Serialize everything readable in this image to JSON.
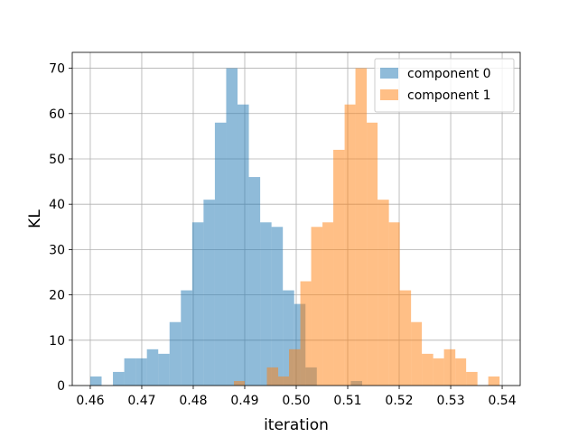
{
  "chart_data": {
    "type": "histogram",
    "title": "",
    "xlabel": "iteration",
    "ylabel": "KL",
    "xlim": [
      0.4565,
      0.5435
    ],
    "ylim": [
      0,
      73.5
    ],
    "xticks": [
      0.46,
      0.47,
      0.48,
      0.49,
      0.5,
      0.51,
      0.52,
      0.53,
      0.54
    ],
    "xtick_labels": [
      "0.46",
      "0.47",
      "0.48",
      "0.49",
      "0.50",
      "0.51",
      "0.52",
      "0.53",
      "0.54"
    ],
    "yticks": [
      0,
      10,
      20,
      30,
      40,
      50,
      60,
      70
    ],
    "ytick_labels": [
      "0",
      "10",
      "20",
      "30",
      "40",
      "50",
      "60",
      "70"
    ],
    "grid": true,
    "legend_position": "top-right",
    "series": [
      {
        "name": "component 0",
        "color": "#1f77b4",
        "alpha": 0.5,
        "bins": [
          {
            "x0": 0.46,
            "x1": 0.4622,
            "count": 2
          },
          {
            "x0": 0.4622,
            "x1": 0.4644,
            "count": 0
          },
          {
            "x0": 0.4644,
            "x1": 0.4666,
            "count": 3
          },
          {
            "x0": 0.4666,
            "x1": 0.4688,
            "count": 6
          },
          {
            "x0": 0.4688,
            "x1": 0.471,
            "count": 6
          },
          {
            "x0": 0.471,
            "x1": 0.4732,
            "count": 8
          },
          {
            "x0": 0.4732,
            "x1": 0.4754,
            "count": 7
          },
          {
            "x0": 0.4754,
            "x1": 0.4776,
            "count": 14
          },
          {
            "x0": 0.4776,
            "x1": 0.4798,
            "count": 21
          },
          {
            "x0": 0.4798,
            "x1": 0.482,
            "count": 36
          },
          {
            "x0": 0.482,
            "x1": 0.4842,
            "count": 41
          },
          {
            "x0": 0.4842,
            "x1": 0.4864,
            "count": 58
          },
          {
            "x0": 0.4864,
            "x1": 0.4886,
            "count": 70
          },
          {
            "x0": 0.4886,
            "x1": 0.4908,
            "count": 62
          },
          {
            "x0": 0.4908,
            "x1": 0.493,
            "count": 46
          },
          {
            "x0": 0.493,
            "x1": 0.4952,
            "count": 36
          },
          {
            "x0": 0.4952,
            "x1": 0.4974,
            "count": 35
          },
          {
            "x0": 0.4974,
            "x1": 0.4996,
            "count": 21
          },
          {
            "x0": 0.4996,
            "x1": 0.5018,
            "count": 18
          },
          {
            "x0": 0.5018,
            "x1": 0.504,
            "count": 4
          },
          {
            "x0": 0.504,
            "x1": 0.5062,
            "count": 0
          },
          {
            "x0": 0.5062,
            "x1": 0.5084,
            "count": 0
          },
          {
            "x0": 0.5084,
            "x1": 0.5106,
            "count": 0
          },
          {
            "x0": 0.5106,
            "x1": 0.5128,
            "count": 1
          }
        ]
      },
      {
        "name": "component 1",
        "color": "#ff7f0e",
        "alpha": 0.5,
        "bins": [
          {
            "x0": 0.4879,
            "x1": 0.49,
            "count": 1
          },
          {
            "x0": 0.49,
            "x1": 0.4922,
            "count": 0
          },
          {
            "x0": 0.4922,
            "x1": 0.4943,
            "count": 0
          },
          {
            "x0": 0.4943,
            "x1": 0.4965,
            "count": 4
          },
          {
            "x0": 0.4965,
            "x1": 0.4986,
            "count": 2
          },
          {
            "x0": 0.4986,
            "x1": 0.5008,
            "count": 8
          },
          {
            "x0": 0.5008,
            "x1": 0.5029,
            "count": 23
          },
          {
            "x0": 0.5029,
            "x1": 0.5051,
            "count": 35
          },
          {
            "x0": 0.5051,
            "x1": 0.5072,
            "count": 36
          },
          {
            "x0": 0.5072,
            "x1": 0.5094,
            "count": 52
          },
          {
            "x0": 0.5094,
            "x1": 0.5115,
            "count": 62
          },
          {
            "x0": 0.5115,
            "x1": 0.5137,
            "count": 70
          },
          {
            "x0": 0.5137,
            "x1": 0.5158,
            "count": 58
          },
          {
            "x0": 0.5158,
            "x1": 0.518,
            "count": 41
          },
          {
            "x0": 0.518,
            "x1": 0.5201,
            "count": 36
          },
          {
            "x0": 0.5201,
            "x1": 0.5223,
            "count": 21
          },
          {
            "x0": 0.5223,
            "x1": 0.5244,
            "count": 14
          },
          {
            "x0": 0.5244,
            "x1": 0.5266,
            "count": 7
          },
          {
            "x0": 0.5266,
            "x1": 0.5287,
            "count": 6
          },
          {
            "x0": 0.5287,
            "x1": 0.5309,
            "count": 8
          },
          {
            "x0": 0.5309,
            "x1": 0.533,
            "count": 6
          },
          {
            "x0": 0.533,
            "x1": 0.5352,
            "count": 3
          },
          {
            "x0": 0.5352,
            "x1": 0.5373,
            "count": 0
          },
          {
            "x0": 0.5373,
            "x1": 0.5395,
            "count": 2
          }
        ]
      }
    ]
  }
}
